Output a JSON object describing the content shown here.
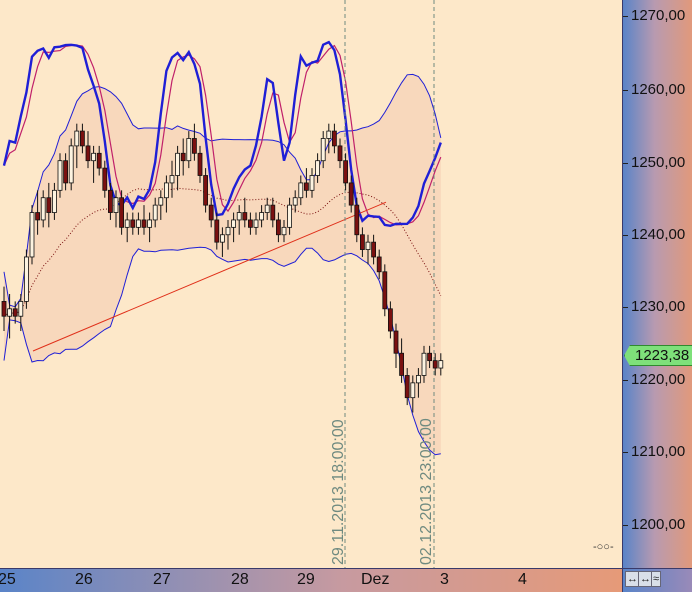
{
  "chart_data": {
    "type": "candlestick",
    "y_range": [
      1195,
      1271.7
    ],
    "y_ticks": [
      "1270,00",
      "1260,00",
      "1250,00",
      "1240,00",
      "1230,00",
      "1220,00",
      "1210,00",
      "1200,00"
    ],
    "y_tick_values": [
      1270,
      1260,
      1250,
      1240,
      1230,
      1220,
      1210,
      1200
    ],
    "x_labels": [
      "25",
      "26",
      "27",
      "28",
      "29",
      "Dez",
      "3",
      "4"
    ],
    "last_price": "1223,38",
    "vertical_markers": [
      "29.11.2013 18:00:00",
      "02.12.2013 23:00:00"
    ],
    "candles": [
      [
        1231,
        1233,
        1227,
        1229
      ],
      [
        1229,
        1232,
        1226,
        1230
      ],
      [
        1230,
        1231,
        1228,
        1229
      ],
      [
        1229,
        1232,
        1227,
        1231
      ],
      [
        1231,
        1238,
        1230,
        1237
      ],
      [
        1237,
        1244,
        1236,
        1243
      ],
      [
        1243,
        1246,
        1240,
        1242
      ],
      [
        1242,
        1246,
        1241,
        1245
      ],
      [
        1245,
        1247,
        1241,
        1243
      ],
      [
        1243,
        1247,
        1242,
        1246
      ],
      [
        1246,
        1251,
        1245,
        1250
      ],
      [
        1250,
        1251,
        1246,
        1247
      ],
      [
        1247,
        1253,
        1246,
        1252
      ],
      [
        1252,
        1255,
        1249,
        1254
      ],
      [
        1254,
        1255,
        1251,
        1252
      ],
      [
        1252,
        1254,
        1249,
        1250
      ],
      [
        1250,
        1252,
        1247,
        1251
      ],
      [
        1251,
        1252,
        1248,
        1249
      ],
      [
        1249,
        1250,
        1245,
        1246
      ],
      [
        1246,
        1247,
        1242,
        1243
      ],
      [
        1243,
        1246,
        1241,
        1245
      ],
      [
        1245,
        1246,
        1240,
        1241
      ],
      [
        1241,
        1243,
        1239,
        1242
      ],
      [
        1242,
        1243,
        1240,
        1241
      ],
      [
        1241,
        1243,
        1240,
        1242
      ],
      [
        1242,
        1244,
        1240,
        1241
      ],
      [
        1241,
        1243,
        1239,
        1242
      ],
      [
        1242,
        1245,
        1241,
        1244
      ],
      [
        1244,
        1246,
        1242,
        1245
      ],
      [
        1245,
        1248,
        1243,
        1247
      ],
      [
        1247,
        1250,
        1245,
        1248
      ],
      [
        1248,
        1252,
        1246,
        1251
      ],
      [
        1251,
        1253,
        1248,
        1250
      ],
      [
        1250,
        1254,
        1249,
        1253
      ],
      [
        1253,
        1255,
        1250,
        1251
      ],
      [
        1251,
        1252,
        1247,
        1248
      ],
      [
        1248,
        1249,
        1243,
        1244
      ],
      [
        1244,
        1245,
        1241,
        1242
      ],
      [
        1242,
        1243,
        1238,
        1239
      ],
      [
        1239,
        1241,
        1237,
        1240
      ],
      [
        1240,
        1242,
        1238,
        1241
      ],
      [
        1241,
        1243,
        1239,
        1242
      ],
      [
        1242,
        1244,
        1240,
        1243
      ],
      [
        1243,
        1245,
        1241,
        1242
      ],
      [
        1242,
        1243,
        1240,
        1241
      ],
      [
        1241,
        1243,
        1240,
        1242
      ],
      [
        1242,
        1244,
        1241,
        1243
      ],
      [
        1243,
        1245,
        1242,
        1244
      ],
      [
        1244,
        1245,
        1241,
        1242
      ],
      [
        1242,
        1243,
        1239,
        1240
      ],
      [
        1240,
        1242,
        1239,
        1241
      ],
      [
        1241,
        1245,
        1240,
        1244
      ],
      [
        1244,
        1246,
        1243,
        1245
      ],
      [
        1245,
        1248,
        1244,
        1247
      ],
      [
        1247,
        1249,
        1245,
        1246
      ],
      [
        1246,
        1249,
        1245,
        1248
      ],
      [
        1248,
        1251,
        1247,
        1250
      ],
      [
        1250,
        1254,
        1249,
        1253
      ],
      [
        1253,
        1255,
        1251,
        1254
      ],
      [
        1254,
        1255,
        1251,
        1252
      ],
      [
        1252,
        1253,
        1249,
        1250
      ],
      [
        1250,
        1251,
        1246,
        1247
      ],
      [
        1247,
        1248,
        1243,
        1244
      ],
      [
        1244,
        1245,
        1239,
        1240
      ],
      [
        1240,
        1241,
        1237,
        1238
      ],
      [
        1238,
        1240,
        1236,
        1239
      ],
      [
        1239,
        1240,
        1236,
        1237
      ],
      [
        1237,
        1238,
        1234,
        1235
      ],
      [
        1235,
        1236,
        1229,
        1230
      ],
      [
        1230,
        1231,
        1226,
        1227
      ],
      [
        1227,
        1228,
        1222,
        1224
      ],
      [
        1224,
        1226,
        1220,
        1221
      ],
      [
        1221,
        1222,
        1217,
        1218
      ],
      [
        1218,
        1221,
        1216,
        1220
      ],
      [
        1220,
        1222,
        1218,
        1221
      ],
      [
        1221,
        1225,
        1220,
        1224
      ],
      [
        1224,
        1225,
        1222,
        1223
      ],
      [
        1223,
        1224,
        1221,
        1222
      ],
      [
        1222,
        1224,
        1221,
        1223
      ]
    ],
    "colors": {
      "up": "#fdf3e0",
      "down": "#7a1010",
      "outline": "#111111",
      "band": "#1f1fd6",
      "band_fill": "#f8d8bc",
      "stoch": "#1f1fd6",
      "stoch_signal": "#c0206a",
      "trendline": "#e0301a",
      "ma": "#7a1010"
    },
    "grid": false
  }
}
